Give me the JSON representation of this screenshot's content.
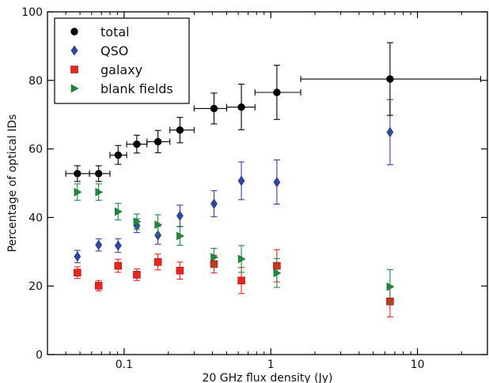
{
  "chart_data": {
    "type": "scatter",
    "xlabel": "20 GHz flux density (Jy)",
    "ylabel": "Percentage of optical IDs",
    "xscale": "log",
    "xlim": [
      0.03,
      30
    ],
    "ylim": [
      0,
      100
    ],
    "grid": false,
    "legend_position": "top-left",
    "x_tick_labels": [
      {
        "value": 0.1,
        "label": "0.1"
      },
      {
        "value": 1,
        "label": "1"
      },
      {
        "value": 10,
        "label": "10"
      }
    ],
    "y_tick_labels": [
      {
        "value": 0,
        "label": "0"
      },
      {
        "value": 20,
        "label": "20"
      },
      {
        "value": 40,
        "label": "40"
      },
      {
        "value": 60,
        "label": "60"
      },
      {
        "value": 80,
        "label": "80"
      },
      {
        "value": 100,
        "label": "100"
      }
    ],
    "series": [
      {
        "name": "total",
        "marker": "circle",
        "color": "#000000",
        "points": [
          {
            "x": 0.048,
            "y": 52.8,
            "yerr": [
              50.5,
              55.1
            ],
            "xerr": [
              0.04,
              0.058
            ]
          },
          {
            "x": 0.067,
            "y": 52.8,
            "yerr": [
              50.5,
              55.1
            ],
            "xerr": [
              0.058,
              0.08
            ]
          },
          {
            "x": 0.091,
            "y": 58.2,
            "yerr": [
              55.5,
              61.0
            ],
            "xerr": [
              0.08,
              0.104
            ]
          },
          {
            "x": 0.122,
            "y": 61.4,
            "yerr": [
              58.8,
              64.0
            ],
            "xerr": [
              0.104,
              0.143
            ]
          },
          {
            "x": 0.17,
            "y": 62.1,
            "yerr": [
              58.9,
              65.4
            ],
            "xerr": [
              0.143,
              0.205
            ]
          },
          {
            "x": 0.24,
            "y": 65.5,
            "yerr": [
              61.8,
              69.2
            ],
            "xerr": [
              0.205,
              0.3
            ]
          },
          {
            "x": 0.41,
            "y": 71.8,
            "yerr": [
              67.3,
              76.3
            ],
            "xerr": [
              0.3,
              0.5
            ]
          },
          {
            "x": 0.63,
            "y": 72.2,
            "yerr": [
              65.6,
              78.9
            ],
            "xerr": [
              0.5,
              0.78
            ]
          },
          {
            "x": 1.1,
            "y": 76.5,
            "yerr": [
              68.6,
              84.4
            ],
            "xerr": [
              0.78,
              1.6
            ]
          },
          {
            "x": 6.5,
            "y": 80.4,
            "yerr": [
              69.8,
              91.0
            ],
            "xerr": [
              1.6,
              27.0
            ]
          }
        ]
      },
      {
        "name": "QSO",
        "marker": "diamond",
        "color": "#2f47a8",
        "points": [
          {
            "x": 0.048,
            "y": 28.6,
            "yerr": [
              26.8,
              30.4
            ]
          },
          {
            "x": 0.067,
            "y": 32.0,
            "yerr": [
              30.2,
              33.8
            ]
          },
          {
            "x": 0.091,
            "y": 31.8,
            "yerr": [
              29.8,
              33.8
            ]
          },
          {
            "x": 0.122,
            "y": 37.6,
            "yerr": [
              35.6,
              39.6
            ]
          },
          {
            "x": 0.17,
            "y": 34.8,
            "yerr": [
              32.2,
              37.4
            ]
          },
          {
            "x": 0.24,
            "y": 40.5,
            "yerr": [
              37.4,
              43.6
            ]
          },
          {
            "x": 0.41,
            "y": 44.0,
            "yerr": [
              40.2,
              47.8
            ]
          },
          {
            "x": 0.63,
            "y": 50.7,
            "yerr": [
              45.2,
              56.2
            ]
          },
          {
            "x": 1.1,
            "y": 50.3,
            "yerr": [
              43.9,
              56.8
            ]
          },
          {
            "x": 6.5,
            "y": 64.9,
            "yerr": [
              55.4,
              74.4
            ]
          }
        ]
      },
      {
        "name": "galaxy",
        "marker": "square",
        "color": "#e8261e",
        "points": [
          {
            "x": 0.048,
            "y": 23.9,
            "yerr": [
              22.2,
              25.6
            ]
          },
          {
            "x": 0.067,
            "y": 20.1,
            "yerr": [
              18.6,
              21.6
            ]
          },
          {
            "x": 0.091,
            "y": 25.9,
            "yerr": [
              24.0,
              27.8
            ]
          },
          {
            "x": 0.122,
            "y": 23.3,
            "yerr": [
              21.6,
              25.0
            ]
          },
          {
            "x": 0.17,
            "y": 27.0,
            "yerr": [
              24.7,
              29.3
            ]
          },
          {
            "x": 0.24,
            "y": 24.5,
            "yerr": [
              22.0,
              27.0
            ]
          },
          {
            "x": 0.41,
            "y": 26.4,
            "yerr": [
              23.8,
              29.0
            ]
          },
          {
            "x": 0.63,
            "y": 21.6,
            "yerr": [
              17.8,
              25.4
            ]
          },
          {
            "x": 1.1,
            "y": 25.9,
            "yerr": [
              21.2,
              30.6
            ]
          },
          {
            "x": 6.5,
            "y": 15.5,
            "yerr": [
              11.0,
              20.0
            ]
          }
        ]
      },
      {
        "name": "blank fields",
        "marker": "triangle-right",
        "color": "#1d8a3d",
        "points": [
          {
            "x": 0.048,
            "y": 47.4,
            "yerr": [
              45.0,
              49.8
            ]
          },
          {
            "x": 0.067,
            "y": 47.4,
            "yerr": [
              45.0,
              49.8
            ]
          },
          {
            "x": 0.091,
            "y": 41.7,
            "yerr": [
              39.3,
              44.1
            ]
          },
          {
            "x": 0.122,
            "y": 38.8,
            "yerr": [
              36.6,
              41.0
            ]
          },
          {
            "x": 0.17,
            "y": 37.9,
            "yerr": [
              35.0,
              40.8
            ]
          },
          {
            "x": 0.24,
            "y": 34.6,
            "yerr": [
              31.9,
              37.3
            ]
          },
          {
            "x": 0.41,
            "y": 28.4,
            "yerr": [
              25.8,
              31.0
            ]
          },
          {
            "x": 0.63,
            "y": 27.9,
            "yerr": [
              24.0,
              31.8
            ]
          },
          {
            "x": 1.1,
            "y": 23.8,
            "yerr": [
              19.6,
              28.0
            ]
          },
          {
            "x": 6.5,
            "y": 19.8,
            "yerr": [
              14.8,
              24.8
            ]
          }
        ]
      }
    ]
  }
}
